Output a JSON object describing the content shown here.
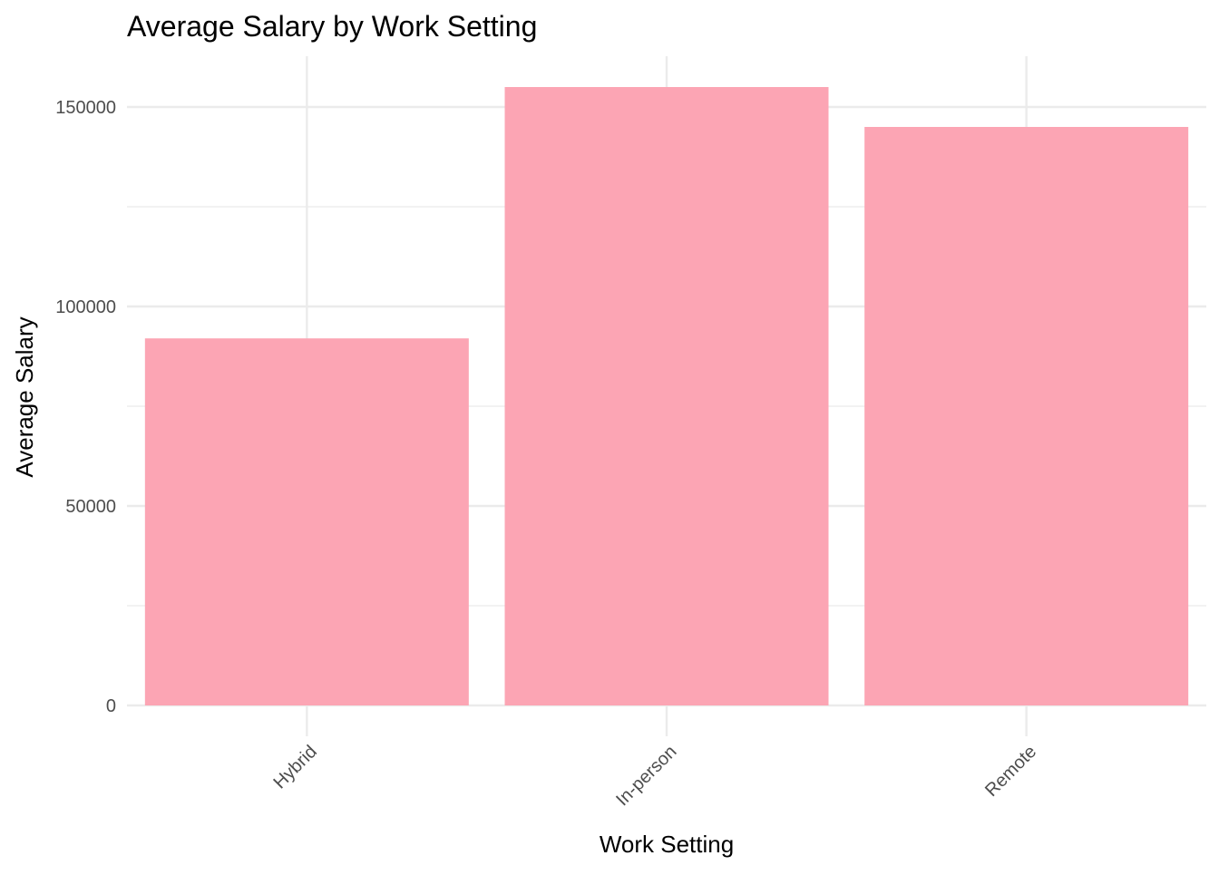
{
  "chart_data": {
    "type": "bar",
    "title": "Average Salary by Work Setting",
    "xlabel": "Work Setting",
    "ylabel": "Average Salary",
    "categories": [
      "Hybrid",
      "In-person",
      "Remote"
    ],
    "values": [
      92000,
      155000,
      145000
    ],
    "ylim": [
      0,
      160000
    ],
    "y_ticks": [
      0,
      50000,
      100000,
      150000
    ],
    "y_tick_labels": [
      "0",
      "50000",
      "100000",
      "150000"
    ],
    "x_tick_rotation_deg": -45,
    "grid": true,
    "legend": "none",
    "colors": {
      "bar": "#fca5b4",
      "grid": "#ebebeb",
      "tick_text": "#4d4d4d",
      "title_text": "#000000"
    }
  }
}
